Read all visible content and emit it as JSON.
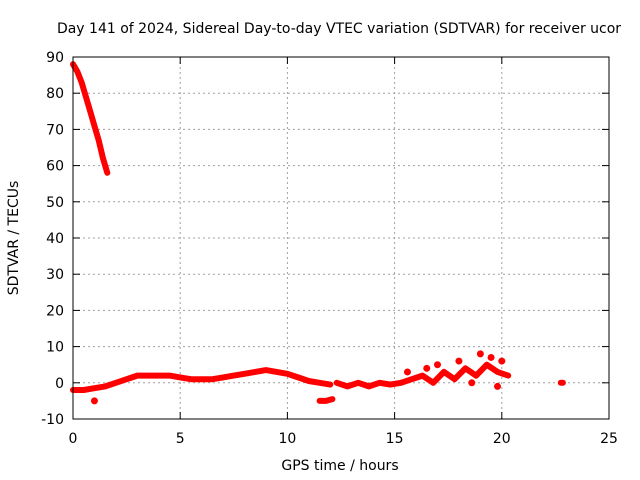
{
  "chart_data": {
    "type": "scatter",
    "title": "Day 141 of 2024, Sidereal Day-to-day VTEC variation (SDTVAR) for receiver ucor",
    "xlabel": "GPS time / hours",
    "ylabel": "SDTVAR / TECUs",
    "xlim": [
      0,
      25
    ],
    "ylim": [
      -10,
      90
    ],
    "xticks": [
      "0",
      "5",
      "10",
      "15",
      "20",
      "25"
    ],
    "yticks": [
      "-10",
      "0",
      "10",
      "20",
      "30",
      "40",
      "50",
      "60",
      "70",
      "80",
      "90"
    ],
    "grid": true,
    "series": [
      {
        "name": "SDTVAR",
        "color": "#ff0000",
        "segments": [
          {
            "x": [
              0.0,
              0.2,
              0.4,
              0.6,
              0.8,
              1.0,
              1.2,
              1.4,
              1.6
            ],
            "y": [
              88,
              86,
              83,
              79,
              75,
              71,
              67,
              62,
              58
            ]
          },
          {
            "x": [
              0.0,
              0.5,
              1.0,
              1.5,
              2.0,
              2.5,
              3.0,
              3.5,
              4.0,
              4.5,
              5.0,
              5.5,
              6.0,
              6.5,
              7.0,
              7.5,
              8.0,
              8.5,
              9.0,
              9.5,
              10.0,
              10.5,
              11.0,
              11.5,
              12.0
            ],
            "y": [
              -2,
              -2,
              -1.5,
              -1,
              0,
              1,
              2,
              2,
              2,
              2,
              1.5,
              1,
              1,
              1,
              1.5,
              2,
              2.5,
              3,
              3.5,
              3,
              2.5,
              1.5,
              0.5,
              0,
              -0.5
            ]
          },
          {
            "x": [
              11.5,
              11.8,
              12.1
            ],
            "y": [
              -5,
              -5,
              -4.5
            ]
          },
          {
            "x": [
              12.3,
              12.8,
              13.3,
              13.8,
              14.3,
              14.8,
              15.3,
              15.8,
              16.3,
              16.8,
              17.3,
              17.8,
              18.3,
              18.8,
              19.3,
              19.8,
              20.3
            ],
            "y": [
              0,
              -1,
              0,
              -1,
              0,
              -0.5,
              0,
              1,
              2,
              0,
              3,
              1,
              4,
              2,
              5,
              3,
              2
            ]
          },
          {
            "x": [
              22.75,
              22.85
            ],
            "y": [
              0,
              0
            ]
          }
        ],
        "scatter_points": {
          "x": [
            1.0,
            16.5,
            17.0,
            18.0,
            19.0,
            19.5,
            20.0,
            19.8,
            18.6,
            15.6
          ],
          "y": [
            -5,
            4,
            5,
            6,
            8,
            7,
            6,
            -1,
            0,
            3
          ]
        }
      }
    ]
  }
}
